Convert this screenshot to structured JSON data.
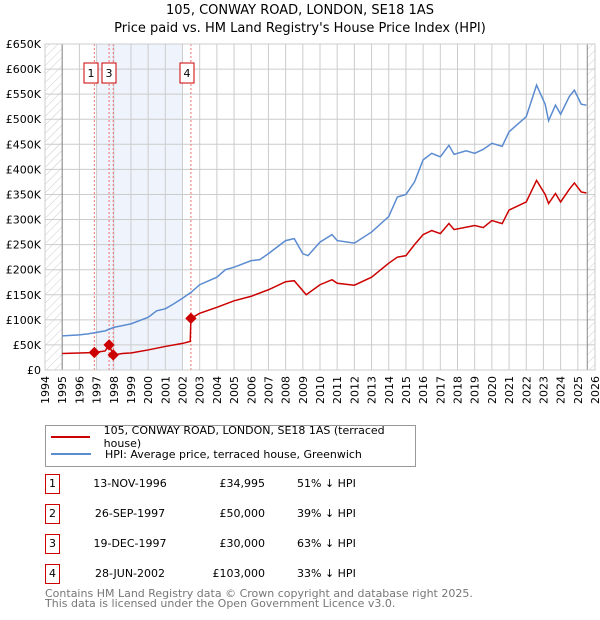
{
  "chart_data": {
    "type": "line",
    "title": "105, CONWAY ROAD, LONDON, SE18 1AS",
    "subtitle": "Price paid vs. HM Land Registry's House Price Index (HPI)",
    "xlim": [
      1994,
      2026
    ],
    "ylim": [
      0,
      650000
    ],
    "xticks": [
      "1994",
      "1995",
      "1996",
      "1997",
      "1998",
      "1999",
      "2000",
      "2001",
      "2002",
      "2003",
      "2004",
      "2005",
      "2006",
      "2007",
      "2008",
      "2009",
      "2010",
      "2011",
      "2012",
      "2013",
      "2014",
      "2015",
      "2016",
      "2017",
      "2018",
      "2019",
      "2020",
      "2021",
      "2022",
      "2023",
      "2024",
      "2025",
      "2026"
    ],
    "yticks": [
      {
        "v": 0,
        "l": "£0"
      },
      {
        "v": 50000,
        "l": "£50K"
      },
      {
        "v": 100000,
        "l": "£100K"
      },
      {
        "v": 150000,
        "l": "£150K"
      },
      {
        "v": 200000,
        "l": "£200K"
      },
      {
        "v": 250000,
        "l": "£250K"
      },
      {
        "v": 300000,
        "l": "£300K"
      },
      {
        "v": 350000,
        "l": "£350K"
      },
      {
        "v": 400000,
        "l": "£400K"
      },
      {
        "v": 450000,
        "l": "£450K"
      },
      {
        "v": 500000,
        "l": "£500K"
      },
      {
        "v": 550000,
        "l": "£550K"
      },
      {
        "v": 600000,
        "l": "£600K"
      },
      {
        "v": 650000,
        "l": "£650K"
      }
    ],
    "grid": true,
    "shaded_range": [
      1997.0,
      2002.0
    ],
    "hatched_before": 1995.0,
    "hatched_after": 2025.55,
    "series": [
      {
        "name": "105, CONWAY ROAD, LONDON, SE18 1AS (terraced house)",
        "color": "#cc0000",
        "x": [
          1995,
          1996,
          1996.87,
          1997.5,
          1997.73,
          1997.97,
          1998.5,
          1999,
          2000,
          2001,
          2002,
          2002.45,
          2002.49,
          2003,
          2004,
          2005,
          2006,
          2007,
          2008,
          2008.5,
          2009.2,
          2010,
          2010.7,
          2011,
          2012,
          2013,
          2014,
          2014.5,
          2015,
          2015.5,
          2016,
          2016.5,
          2017,
          2017.5,
          2017.8,
          2019,
          2019.5,
          2020,
          2020.6,
          2021,
          2022,
          2022.6,
          2023.1,
          2023.3,
          2023.7,
          2024,
          2024.5,
          2024.8,
          2025.2,
          2025.5
        ],
        "y": [
          33000,
          34000,
          34995,
          38000,
          50000,
          30000,
          33000,
          34000,
          40000,
          47000,
          53000,
          57000,
          103000,
          113000,
          125000,
          138000,
          147000,
          160000,
          176000,
          178000,
          150000,
          170000,
          180000,
          173000,
          169000,
          185000,
          213000,
          225000,
          228000,
          250000,
          270000,
          278000,
          272000,
          292000,
          280000,
          288000,
          284000,
          298000,
          292000,
          319000,
          335000,
          378000,
          350000,
          332000,
          352000,
          335000,
          360000,
          373000,
          355000,
          353000
        ]
      },
      {
        "name": "HPI: Average price, terraced house, Greenwich",
        "color": "#5b8bd0",
        "x": [
          1995,
          1996,
          1996.5,
          1997,
          1997.5,
          1998,
          1999,
          2000,
          2000.5,
          2001,
          2001.5,
          2002,
          2002.5,
          2003,
          2004,
          2004.5,
          2005,
          2006,
          2006.5,
          2007,
          2008,
          2008.5,
          2009,
          2009.3,
          2010,
          2010.7,
          2011,
          2012,
          2013,
          2014,
          2014.5,
          2015,
          2015.5,
          2016,
          2016.5,
          2017,
          2017.5,
          2017.8,
          2018.5,
          2019,
          2019.5,
          2020,
          2020.6,
          2021,
          2021.5,
          2022,
          2022.6,
          2023.1,
          2023.3,
          2023.7,
          2024,
          2024.5,
          2024.8,
          2025.2,
          2025.5
        ],
        "y": [
          68000,
          70000,
          72000,
          75000,
          78000,
          85000,
          92000,
          105000,
          118000,
          122000,
          132000,
          143000,
          155000,
          170000,
          185000,
          200000,
          205000,
          218000,
          220000,
          232000,
          258000,
          262000,
          232000,
          228000,
          255000,
          270000,
          258000,
          253000,
          275000,
          306000,
          345000,
          350000,
          375000,
          419000,
          432000,
          425000,
          448000,
          430000,
          437000,
          432000,
          440000,
          452000,
          446000,
          475000,
          490000,
          505000,
          568000,
          530000,
          497000,
          528000,
          510000,
          545000,
          558000,
          530000,
          528000
        ]
      }
    ],
    "sales": [
      {
        "id": "1",
        "date": "13-NOV-1996",
        "price": "£34,995",
        "hpi": "51% ↓ HPI",
        "x": 1996.87,
        "y": 34995
      },
      {
        "id": "2",
        "date": "26-SEP-1997",
        "price": "£50,000",
        "hpi": "39% ↓ HPI",
        "x": 1997.73,
        "y": 50000
      },
      {
        "id": "3",
        "date": "19-DEC-1997",
        "price": "£30,000",
        "hpi": "63% ↓ HPI",
        "x": 1997.97,
        "y": 30000
      },
      {
        "id": "4",
        "date": "28-JUN-2002",
        "price": "£103,000",
        "hpi": "33% ↓ HPI",
        "x": 2002.49,
        "y": 103000
      }
    ]
  },
  "footer": {
    "line1": "Contains HM Land Registry data © Crown copyright and database right 2025.",
    "line2": "This data is licensed under the Open Government Licence v3.0."
  }
}
